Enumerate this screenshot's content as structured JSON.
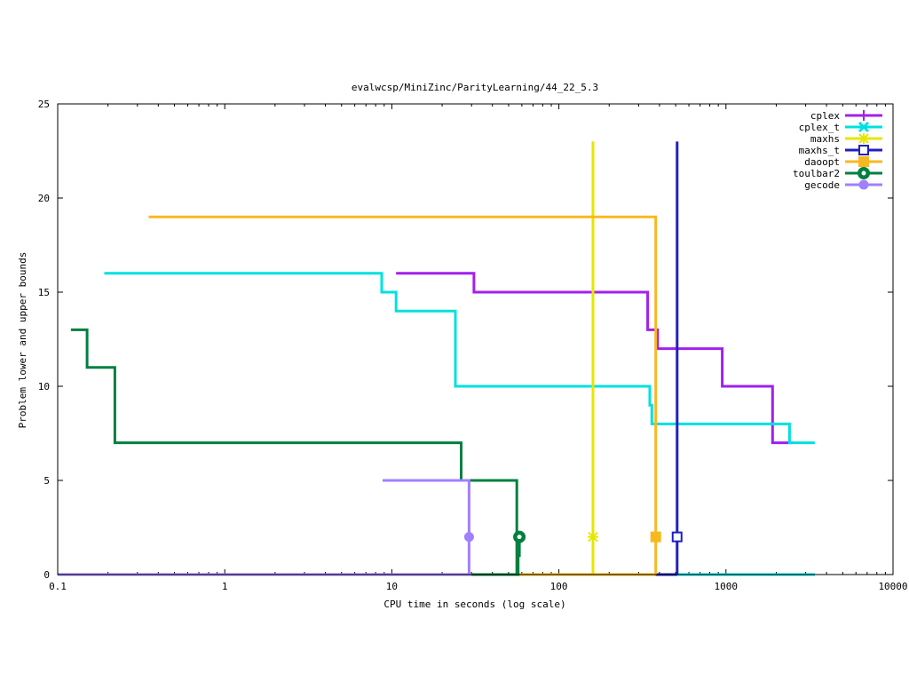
{
  "chart_data": {
    "type": "line",
    "title": "evalwcsp/MiniZinc/ParityLearning/44_22_5.3",
    "xlabel": "CPU time in seconds (log scale)",
    "ylabel": "Problem lower and upper bounds",
    "x_scale": "log",
    "xlim": [
      0.1,
      10000
    ],
    "ylim": [
      0,
      25
    ],
    "x_ticks": [
      0.1,
      1,
      10,
      100,
      1000,
      10000
    ],
    "x_tick_labels": [
      "0.1",
      "1",
      "10",
      "100",
      "1000",
      "10000"
    ],
    "y_ticks": [
      0,
      5,
      10,
      15,
      20,
      25
    ],
    "y_tick_labels": [
      "0",
      "5",
      "10",
      "15",
      "20",
      "25"
    ],
    "grid": false,
    "legend_position": "top-right",
    "series": [
      {
        "name": "cplex",
        "color": "#a020f0",
        "marker": "plus",
        "upper": [
          [
            10.6,
            16
          ],
          [
            31,
            16
          ],
          [
            31,
            15
          ],
          [
            340,
            15
          ],
          [
            340,
            13
          ],
          [
            390,
            13
          ],
          [
            390,
            12
          ],
          [
            950,
            12
          ],
          [
            950,
            10
          ],
          [
            1900,
            10
          ],
          [
            1900,
            7
          ],
          [
            2500,
            7
          ]
        ],
        "lower": [
          [
            0.1,
            0
          ],
          [
            3400,
            0
          ]
        ],
        "point": null
      },
      {
        "name": "cplex_t",
        "color": "#00e0e0",
        "marker": "x",
        "upper": [
          [
            0.19,
            16
          ],
          [
            8.7,
            16
          ],
          [
            8.7,
            15
          ],
          [
            10.6,
            15
          ],
          [
            10.6,
            14
          ],
          [
            24,
            14
          ],
          [
            24,
            10
          ],
          [
            350,
            10
          ],
          [
            350,
            9
          ],
          [
            360,
            9
          ],
          [
            360,
            8
          ],
          [
            2400,
            8
          ],
          [
            2400,
            7
          ],
          [
            3400,
            7
          ]
        ],
        "lower": [
          [
            0.1,
            0
          ],
          [
            3400,
            0
          ]
        ],
        "point": null
      },
      {
        "name": "maxhs",
        "color": "#e6e600",
        "marker": "star",
        "upper": [
          [
            160,
            23
          ],
          [
            160,
            0
          ]
        ],
        "lower": [
          [
            160,
            0
          ]
        ],
        "point": [
          160,
          2
        ]
      },
      {
        "name": "maxhs_t",
        "color": "#2020c0",
        "marker": "square",
        "upper": [
          [
            510,
            23
          ],
          [
            510,
            0
          ]
        ],
        "lower": [
          [
            0.1,
            0
          ],
          [
            510,
            0
          ]
        ],
        "point": [
          510,
          2
        ]
      },
      {
        "name": "daoopt",
        "color": "#f8b820",
        "marker": "filled-square",
        "upper": [
          [
            0.35,
            19
          ],
          [
            380,
            19
          ],
          [
            380,
            0
          ]
        ],
        "lower": [
          [
            30,
            0
          ],
          [
            380,
            0
          ]
        ],
        "point": [
          380,
          2
        ]
      },
      {
        "name": "toulbar2",
        "color": "#008040",
        "marker": "circle",
        "upper": [
          [
            0.12,
            13
          ],
          [
            0.15,
            13
          ],
          [
            0.15,
            11
          ],
          [
            0.22,
            11
          ],
          [
            0.22,
            7
          ],
          [
            26,
            7
          ],
          [
            26,
            5
          ],
          [
            56,
            5
          ],
          [
            56,
            0
          ]
        ],
        "lower": [
          [
            0.1,
            0
          ],
          [
            57,
            0
          ],
          [
            57,
            1
          ],
          [
            58,
            1
          ],
          [
            58,
            2
          ]
        ],
        "point": [
          58,
          2
        ]
      },
      {
        "name": "gecode",
        "color": "#a080ff",
        "marker": "filled-circle",
        "upper": [
          [
            8.8,
            5
          ],
          [
            29,
            5
          ],
          [
            29,
            0
          ]
        ],
        "lower": [
          [
            0.1,
            0
          ],
          [
            30,
            0
          ]
        ],
        "point": [
          29,
          2
        ]
      }
    ]
  }
}
